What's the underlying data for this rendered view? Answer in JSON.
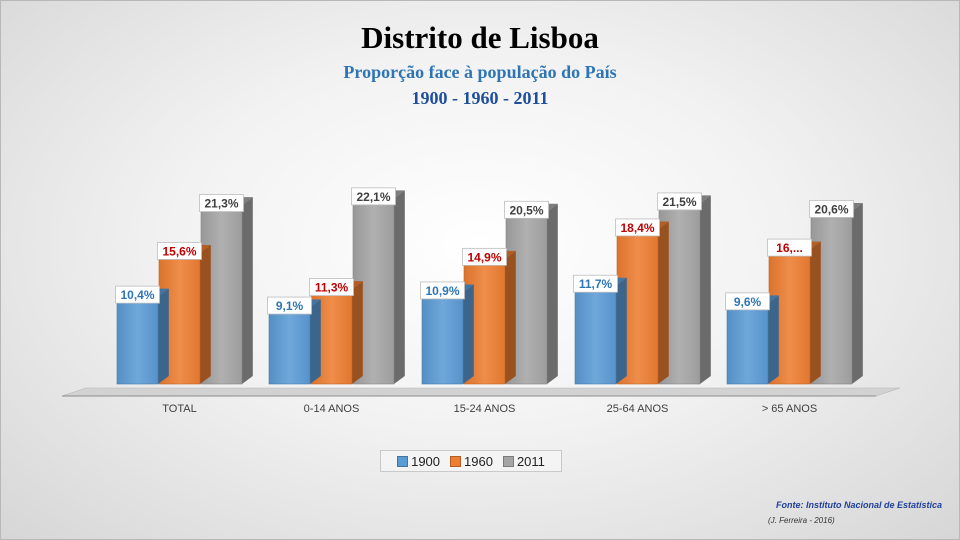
{
  "header": {
    "title": "Distrito de Lisboa",
    "subtitle": "Proporção face à população do País",
    "years": "1900 - 1960 - 2011"
  },
  "footer": {
    "source": "Fonte: Instituto Nacional de Estatística",
    "credit": "(J. Ferreira - 2016)"
  },
  "chart_data": {
    "type": "bar",
    "categories": [
      "TOTAL",
      "0-14 ANOS",
      "15-24 ANOS",
      "25-64 ANOS",
      "> 65 ANOS"
    ],
    "series": [
      {
        "name": "1900",
        "values": [
          10.4,
          9.1,
          10.9,
          11.7,
          9.6
        ],
        "labels": [
          "10,4%",
          "9,1%",
          "10,9%",
          "11,7%",
          "9,6%"
        ],
        "color": "#5b9bd5",
        "label_color": "#2e75b6"
      },
      {
        "name": "1960",
        "values": [
          15.6,
          11.3,
          14.9,
          18.4,
          16.0
        ],
        "labels": [
          "15,6%",
          "11,3%",
          "14,9%",
          "18,4%",
          "16,..."
        ],
        "color": "#ed7d31",
        "label_color": "#c00000"
      },
      {
        "name": "2011",
        "values": [
          21.3,
          22.1,
          20.5,
          21.5,
          20.6
        ],
        "labels": [
          "21,3%",
          "22,1%",
          "20,5%",
          "21,5%",
          "20,6%"
        ],
        "color": "#a5a5a5",
        "label_color": "#404040"
      }
    ],
    "ylim": [
      0,
      25
    ],
    "legend": "bottom",
    "grid": false,
    "style": "3d-clustered-column"
  }
}
